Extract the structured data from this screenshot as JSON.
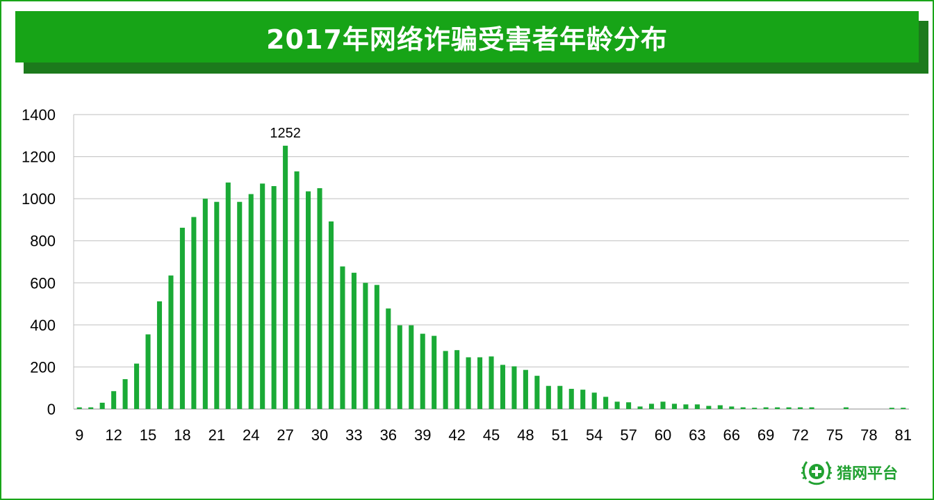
{
  "title": "2017年网络诈骗受害者年龄分布",
  "brand": {
    "name": "猎网平台"
  },
  "colors": {
    "bar": "#1aaa36",
    "banner": "#17a417",
    "banner_shadow": "#1c7a1c",
    "grid": "#bfbfbf"
  },
  "chart_data": {
    "type": "bar",
    "title": "2017年网络诈骗受害者年龄分布",
    "xlabel": "",
    "ylabel": "",
    "ylim": [
      0,
      1400
    ],
    "yticks": [
      0,
      200,
      400,
      600,
      800,
      1000,
      1200,
      1400
    ],
    "xtick_labels": [
      "9",
      "12",
      "15",
      "18",
      "21",
      "24",
      "27",
      "30",
      "33",
      "36",
      "39",
      "42",
      "45",
      "48",
      "51",
      "54",
      "57",
      "60",
      "63",
      "66",
      "69",
      "72",
      "75",
      "78",
      "81"
    ],
    "grid": true,
    "categories": [
      9,
      10,
      11,
      12,
      13,
      14,
      15,
      16,
      17,
      18,
      19,
      20,
      21,
      22,
      23,
      24,
      25,
      26,
      27,
      28,
      29,
      30,
      31,
      32,
      33,
      34,
      35,
      36,
      37,
      38,
      39,
      40,
      41,
      42,
      43,
      44,
      45,
      46,
      47,
      48,
      49,
      50,
      51,
      52,
      53,
      54,
      55,
      56,
      57,
      58,
      59,
      60,
      61,
      62,
      63,
      64,
      65,
      66,
      67,
      68,
      69,
      70,
      71,
      72,
      73,
      74,
      75,
      76,
      77,
      78,
      79,
      80,
      81
    ],
    "values": [
      8,
      8,
      30,
      85,
      142,
      216,
      355,
      512,
      635,
      862,
      913,
      1000,
      985,
      1077,
      985,
      1022,
      1072,
      1060,
      1252,
      1130,
      1035,
      1050,
      892,
      678,
      648,
      600,
      590,
      478,
      398,
      398,
      358,
      348,
      276,
      280,
      246,
      246,
      250,
      210,
      203,
      186,
      158,
      110,
      110,
      96,
      92,
      78,
      58,
      35,
      32,
      12,
      25,
      35,
      25,
      22,
      22,
      15,
      18,
      12,
      8,
      6,
      8,
      8,
      8,
      8,
      8,
      0,
      0,
      8,
      0,
      0,
      0,
      6,
      6
    ],
    "annotations": [
      {
        "category": 27,
        "label": "1252"
      }
    ]
  }
}
